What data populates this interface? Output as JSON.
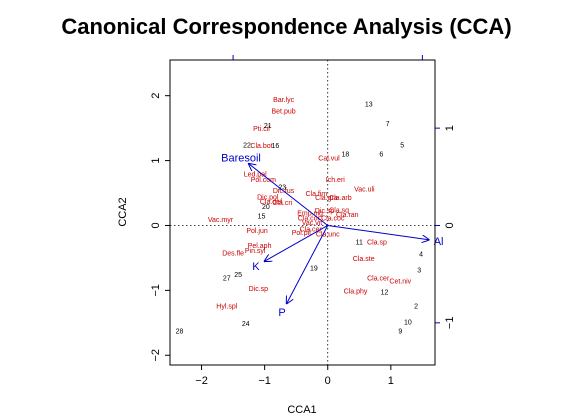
{
  "title": "Canonical Correspondence Analysis (CCA)",
  "chart_data": {
    "type": "scatter",
    "title": "Canonical Correspondence Analysis (CCA)",
    "xlabel": "CCA1",
    "ylabel": "CCA2",
    "xlim": [
      -2.5,
      1.7
    ],
    "ylim": [
      -2.15,
      2.55
    ],
    "x_ticks": [
      -2,
      -1,
      0,
      1
    ],
    "y_ticks": [
      -2,
      -1,
      0,
      1,
      2
    ],
    "x_tick_labels": [
      "−2",
      "−1",
      "0",
      "1"
    ],
    "y_tick_labels": [
      "−2",
      "−1",
      "0",
      "1",
      "2"
    ],
    "right_axis_ticks": [
      1.5,
      0,
      -1.5
    ],
    "right_axis_tick_labels": [
      "1",
      "0",
      "−1"
    ],
    "top_axis_ticks": [
      -1.5,
      1.5
    ],
    "grid": false,
    "reference_lines": {
      "x": 0,
      "y": 0,
      "style": "dotted"
    },
    "colors": {
      "sites": "#000000",
      "species": "#cc0000",
      "biplot": "#0000cc",
      "axes": "#000000"
    },
    "sites": [
      {
        "label": "13",
        "x": 0.65,
        "y": 1.88
      },
      {
        "label": "21",
        "x": -0.95,
        "y": 1.55
      },
      {
        "label": "7",
        "x": 0.95,
        "y": 1.58
      },
      {
        "label": "22",
        "x": -1.28,
        "y": 1.25
      },
      {
        "label": "16",
        "x": -0.83,
        "y": 1.24
      },
      {
        "label": "5",
        "x": 1.18,
        "y": 1.25
      },
      {
        "label": "18",
        "x": 0.28,
        "y": 1.11
      },
      {
        "label": "6",
        "x": 0.85,
        "y": 1.11
      },
      {
        "label": "23",
        "x": -0.72,
        "y": 0.6
      },
      {
        "label": "20",
        "x": -0.98,
        "y": 0.3
      },
      {
        "label": "15",
        "x": -1.05,
        "y": 0.15
      },
      {
        "label": "11",
        "x": 0.5,
        "y": -0.25
      },
      {
        "label": "4",
        "x": 1.48,
        "y": -0.43
      },
      {
        "label": "19",
        "x": -0.22,
        "y": -0.65
      },
      {
        "label": "3",
        "x": 1.45,
        "y": -0.68
      },
      {
        "label": "25",
        "x": -1.42,
        "y": -0.75
      },
      {
        "label": "27",
        "x": -1.6,
        "y": -0.8
      },
      {
        "label": "12",
        "x": 0.9,
        "y": -1.02
      },
      {
        "label": "2",
        "x": 1.4,
        "y": -1.23
      },
      {
        "label": "24",
        "x": -1.3,
        "y": -1.5
      },
      {
        "label": "10",
        "x": 1.27,
        "y": -1.48
      },
      {
        "label": "28",
        "x": -2.35,
        "y": -1.62
      },
      {
        "label": "9",
        "x": 1.15,
        "y": -1.62
      }
    ],
    "species": [
      {
        "label": "Bar.lyc",
        "x": -0.7,
        "y": 1.95
      },
      {
        "label": "Bet.pub",
        "x": -0.7,
        "y": 1.77
      },
      {
        "label": "Pti.cil",
        "x": -1.05,
        "y": 1.5
      },
      {
        "label": "Cla.bot",
        "x": -1.05,
        "y": 1.24
      },
      {
        "label": "Cal.vul",
        "x": 0.02,
        "y": 1.05
      },
      {
        "label": "Led.pal",
        "x": -1.15,
        "y": 0.8
      },
      {
        "label": "Pol.com",
        "x": -1.02,
        "y": 0.72
      },
      {
        "label": "Ich.eri",
        "x": 0.12,
        "y": 0.72
      },
      {
        "label": "Vac.uli",
        "x": 0.58,
        "y": 0.57
      },
      {
        "label": "Dic.fus",
        "x": -0.7,
        "y": 0.55
      },
      {
        "label": "Dic.pol",
        "x": -0.95,
        "y": 0.45
      },
      {
        "label": "Cla.fim",
        "x": -0.18,
        "y": 0.5
      },
      {
        "label": "Cla.gra",
        "x": -0.02,
        "y": 0.44
      },
      {
        "label": "Cla.arb",
        "x": 0.2,
        "y": 0.44
      },
      {
        "label": "Cla.def",
        "x": -0.9,
        "y": 0.38
      },
      {
        "label": "Cla.cri",
        "x": -0.72,
        "y": 0.36
      },
      {
        "label": "Dic.sp",
        "x": -0.05,
        "y": 0.24
      },
      {
        "label": "Cla.sq",
        "x": 0.18,
        "y": 0.25
      },
      {
        "label": "Emp.nig",
        "x": -0.28,
        "y": 0.2
      },
      {
        "label": "Cla.ran",
        "x": 0.31,
        "y": 0.18
      },
      {
        "label": "Vac.myr",
        "x": -1.7,
        "y": 0.1
      },
      {
        "label": "Cla.cor",
        "x": -0.3,
        "y": 0.12
      },
      {
        "label": "Cla.coc",
        "x": 0.08,
        "y": 0.12
      },
      {
        "label": "Vac.vit",
        "x": -0.25,
        "y": 0.05
      },
      {
        "label": "Pol.jun",
        "x": -1.12,
        "y": -0.07
      },
      {
        "label": "Cla.cer",
        "x": -0.27,
        "y": -0.05
      },
      {
        "label": "Pol.pil",
        "x": -0.42,
        "y": -0.1
      },
      {
        "label": "Cla.unc",
        "x": 0.0,
        "y": -0.12
      },
      {
        "label": "Pel.aph",
        "x": -1.08,
        "y": -0.3
      },
      {
        "label": "Cla.sp",
        "x": 0.78,
        "y": -0.25
      },
      {
        "label": "Pin.syl",
        "x": -1.15,
        "y": -0.38
      },
      {
        "label": "Des.fle",
        "x": -1.5,
        "y": -0.42
      },
      {
        "label": "Cla.ste",
        "x": 0.57,
        "y": -0.5
      },
      {
        "label": "Cla.cer",
        "x": 0.8,
        "y": -0.8
      },
      {
        "label": "Cet.niv",
        "x": 1.15,
        "y": -0.85
      },
      {
        "label": "Dic.sp",
        "x": -1.1,
        "y": -0.96
      },
      {
        "label": "Cla.phy",
        "x": 0.44,
        "y": -1.0
      },
      {
        "label": "Hyl.spl",
        "x": -1.6,
        "y": -1.23
      }
    ],
    "biplot_arrows": [
      {
        "label": "Baresoil",
        "x": -1.25,
        "y": 0.95
      },
      {
        "label": "Al",
        "x": 1.6,
        "y": -0.22
      },
      {
        "label": "K",
        "x": -1.0,
        "y": -0.55
      },
      {
        "label": "P",
        "x": -0.65,
        "y": -1.2
      }
    ]
  }
}
